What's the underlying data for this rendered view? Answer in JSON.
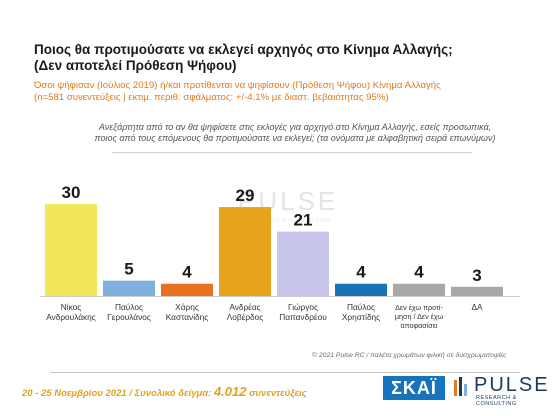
{
  "title_line1": "Ποιος θα προτιμούσατε να εκλεγεί αρχηγός στο Κίνημα Αλλαγής;",
  "title_line2": "(Δεν αποτελεί Πρόθεση Ψήφου)",
  "subtitle_line1": "Όσοι ψήφισαν (Ιούλιος 2019) ή/και προτίθενται να ψηφίσουν  (Πρόθεση Ψήφου) Κίνημα Αλλαγής",
  "subtitle_line2": "(n=581 συνεντεύξεις | εκτιμ. περιθ. σφάλματος: +/-4.1% με διαστ. βεβαιότητας 95%)",
  "question_line1": "Ανεξάρτητα από το αν θα ψηφίσετε στις εκλογές για αρχηγό στο Κίνημα Αλλαγής, εσείς προσωπικά,",
  "question_line2": "ποιος από τους επόμενους θα προτιμούσατε να εκλεγεί; (τα ονόματα με αλφαβητική σειρά επωνύμων)",
  "watermark": {
    "name": "PULSE",
    "sub": "RESEARCH & CONSULTING"
  },
  "copyright": "© 2021 Pulse RC  /  παλέτα χρωμάτων φιλική σε δυσχρωματοψίες",
  "footer": {
    "dates": "20 - 25  Νοεμβρίου 2021  /  Συνολικό δείγμα: ",
    "sample": "4.012",
    "suffix": " συνεντεύξεις"
  },
  "logos": {
    "skai": "ΣΚΑΪ",
    "pulse": "PULSE",
    "pulse_sub": "RESEARCH & CONSULTING"
  },
  "chart_data": {
    "type": "bar",
    "categories": [
      [
        "Νίκος",
        "Ανδρουλάκης"
      ],
      [
        "Παύλος",
        "Γερουλάνος"
      ],
      [
        "Χάρης",
        "Καστανίδης"
      ],
      [
        "Ανδρέας",
        "Λοβέρδος"
      ],
      [
        "Γιώργος",
        "Παπανδρέου"
      ],
      [
        "Παύλος",
        "Χρηστίδης"
      ],
      [
        "Δεν έχω προτί-",
        "μηση / Δεν έχω",
        "αποφασίσει"
      ],
      [
        "ΔΑ"
      ]
    ],
    "values": [
      30,
      5,
      4,
      29,
      21,
      4,
      4,
      3
    ],
    "colors": [
      "#f2e65a",
      "#7fb0de",
      "#ea6f1e",
      "#e7a41c",
      "#c9c6ee",
      "#1872b6",
      "#a8a8a8",
      "#a8a8a8"
    ],
    "ylim": [
      0,
      30
    ]
  }
}
